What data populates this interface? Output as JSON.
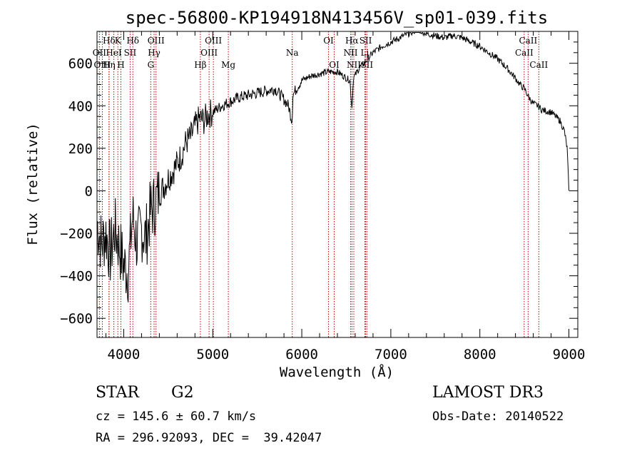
{
  "chart_data": {
    "type": "line",
    "title": "spec-56800-KP194918N413456V_sp01-039.fits",
    "xlabel": "Wavelength (Å)",
    "ylabel": "Flux (relative)",
    "xlim": [
      3700,
      9100
    ],
    "ylim": [
      -690,
      750
    ],
    "x_ticks": [
      4000,
      5000,
      6000,
      7000,
      8000,
      9000
    ],
    "y_ticks": [
      -600,
      -400,
      -200,
      0,
      200,
      400,
      600
    ],
    "series": [
      {
        "name": "flux",
        "x": [
          3700,
          3750,
          3800,
          3850,
          3900,
          3950,
          4000,
          4050,
          4100,
          4150,
          4200,
          4250,
          4300,
          4350,
          4400,
          4450,
          4500,
          4550,
          4600,
          4650,
          4700,
          4750,
          4800,
          4850,
          4900,
          4950,
          5000,
          5100,
          5200,
          5300,
          5400,
          5500,
          5600,
          5700,
          5800,
          5850,
          5890,
          5900,
          5950,
          6000,
          6100,
          6200,
          6300,
          6400,
          6500,
          6540,
          6563,
          6580,
          6650,
          6700,
          6800,
          6900,
          7000,
          7100,
          7200,
          7300,
          7400,
          7500,
          7600,
          7700,
          7800,
          7900,
          8000,
          8100,
          8200,
          8300,
          8400,
          8450,
          8500,
          8550,
          8600,
          8650,
          8700,
          8800,
          8900,
          8950,
          8980,
          9000
        ],
        "y": [
          -150,
          -250,
          -200,
          -300,
          -180,
          -260,
          -350,
          -380,
          -120,
          -250,
          -180,
          -220,
          -100,
          -60,
          -10,
          20,
          60,
          90,
          130,
          170,
          230,
          250,
          300,
          340,
          330,
          360,
          370,
          400,
          420,
          440,
          450,
          460,
          470,
          480,
          430,
          400,
          330,
          450,
          490,
          520,
          540,
          550,
          560,
          560,
          530,
          520,
          390,
          530,
          580,
          600,
          650,
          680,
          700,
          720,
          740,
          760,
          740,
          730,
          720,
          730,
          720,
          700,
          680,
          650,
          620,
          580,
          530,
          500,
          480,
          440,
          410,
          400,
          380,
          370,
          330,
          280,
          200,
          0
        ]
      }
    ],
    "spectral_lines": [
      {
        "label": "Hδ",
        "wave": 3835,
        "row": 1
      },
      {
        "label": "OII",
        "wave": 3727,
        "row": 2
      },
      {
        "label": "OIII",
        "wave": 3760,
        "row": 3
      },
      {
        "label": "K",
        "wave": 3934,
        "row": 1
      },
      {
        "label": "HeI",
        "wave": 3889,
        "row": 2
      },
      {
        "label": "Hη",
        "wave": 3835,
        "row": 3
      },
      {
        "label": "Hδ",
        "wave": 4102,
        "row": 1
      },
      {
        "label": "SII",
        "wave": 4072,
        "row": 2
      },
      {
        "label": "H",
        "wave": 3968,
        "row": 3
      },
      {
        "label": "OIII",
        "wave": 4363,
        "row": 1
      },
      {
        "label": "Hγ",
        "wave": 4341,
        "row": 2
      },
      {
        "label": "G",
        "wave": 4304,
        "row": 3
      },
      {
        "label": "Hβ",
        "wave": 4861,
        "row": 3
      },
      {
        "label": "OIII",
        "wave": 5007,
        "row": 1
      },
      {
        "label": "OIII",
        "wave": 4959,
        "row": 2
      },
      {
        "label": "Mg",
        "wave": 5175,
        "row": 3
      },
      {
        "label": "Na",
        "wave": 5893,
        "row": 2
      },
      {
        "label": "OI",
        "wave": 6300,
        "row": 1
      },
      {
        "label": "OI",
        "wave": 6364,
        "row": 3
      },
      {
        "label": "Hα",
        "wave": 6563,
        "row": 1
      },
      {
        "label": "NII",
        "wave": 6548,
        "row": 2
      },
      {
        "label": "NII",
        "wave": 6584,
        "row": 3
      },
      {
        "label": "SII",
        "wave": 6717,
        "row": 1
      },
      {
        "label": "Li",
        "wave": 6708,
        "row": 2
      },
      {
        "label": "SII",
        "wave": 6731,
        "row": 3
      },
      {
        "label": "CaII",
        "wave": 8542,
        "row": 1
      },
      {
        "label": "CaII",
        "wave": 8498,
        "row": 2
      },
      {
        "label": "CaII",
        "wave": 8662,
        "row": 3
      }
    ],
    "line_color": "#000000",
    "marker_color": "#cc0000"
  },
  "info": {
    "class": "STAR",
    "subclass": "G2",
    "survey": "LAMOST DR3",
    "cz": "cz = 145.6 ± 60.7 km/s",
    "obs_date": "Obs-Date: 20140522",
    "radec": "RA = 296.92093, DEC =  39.42047"
  }
}
